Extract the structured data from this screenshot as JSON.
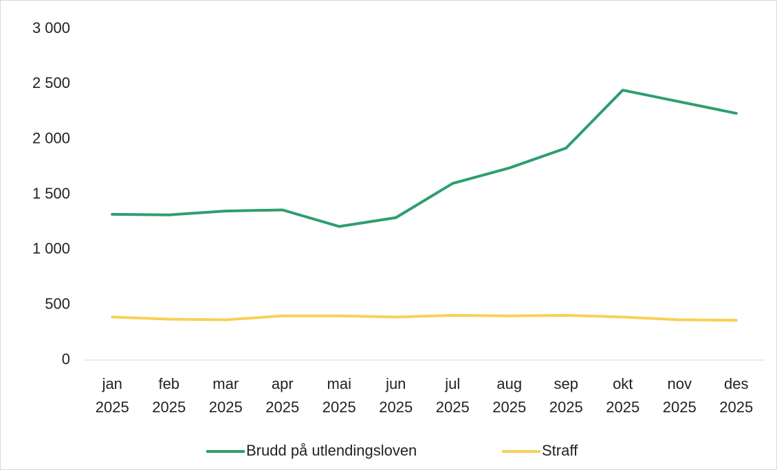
{
  "chart_data": {
    "type": "line",
    "categories": [
      "jan 2025",
      "feb 2025",
      "mar 2025",
      "apr 2025",
      "mai 2025",
      "jun 2025",
      "jul 2025",
      "aug 2025",
      "sep 2025",
      "okt 2025",
      "nov 2025",
      "des 2025"
    ],
    "series": [
      {
        "name": "Brudd på utlendingsloven",
        "color": "#2e9e6e",
        "values": [
          1320,
          1315,
          1350,
          1360,
          1210,
          1290,
          1600,
          1740,
          1920,
          2445,
          2340,
          2235
        ]
      },
      {
        "name": "Straff",
        "color": "#f9d056",
        "values": [
          390,
          370,
          365,
          400,
          400,
          390,
          405,
          400,
          405,
          390,
          365,
          360
        ]
      }
    ],
    "ylim": [
      0,
      3000
    ],
    "yticks": [
      0,
      500,
      {
        "value": 1000,
        "label": "1 000"
      },
      {
        "value": 1500,
        "label": "1 500"
      },
      {
        "value": 2000,
        "label": "2 000"
      },
      {
        "value": 2500,
        "label": "2 500"
      },
      {
        "value": 3000,
        "label": "3 000"
      }
    ],
    "legend": "bottom"
  }
}
